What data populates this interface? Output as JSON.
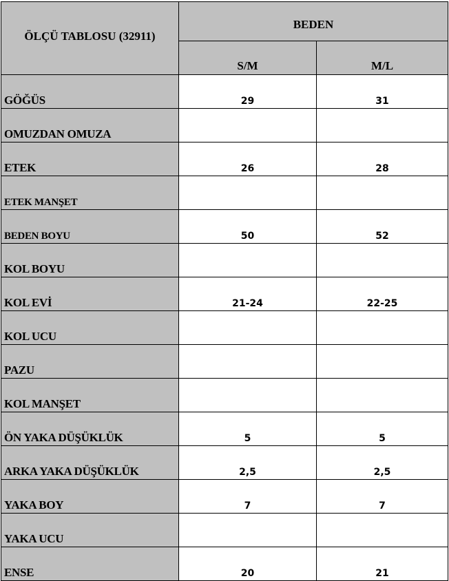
{
  "header": {
    "title": "ÖLÇÜ TABLOSU (32911)",
    "group": "BEDEN",
    "sizes": [
      "S/M",
      "M/L"
    ]
  },
  "rows": [
    {
      "label": "GÖĞÜS",
      "values": [
        "29",
        "31"
      ]
    },
    {
      "label": "OMUZDAN OMUZA",
      "values": [
        "",
        ""
      ]
    },
    {
      "label": "ETEK",
      "values": [
        "26",
        "28"
      ]
    },
    {
      "label": "ETEK MANŞET",
      "values": [
        "",
        ""
      ]
    },
    {
      "label": "BEDEN BOYU",
      "values": [
        "50",
        "52"
      ]
    },
    {
      "label": "KOL BOYU",
      "values": [
        "",
        ""
      ]
    },
    {
      "label": "KOL EVİ",
      "values": [
        "21-24",
        "22-25"
      ]
    },
    {
      "label": "KOL UCU",
      "values": [
        "",
        ""
      ]
    },
    {
      "label": "PAZU",
      "values": [
        "",
        ""
      ]
    },
    {
      "label": "KOL MANŞET",
      "values": [
        "",
        ""
      ]
    },
    {
      "label": "ÖN YAKA DÜŞÜKLÜK",
      "values": [
        "5",
        "5"
      ]
    },
    {
      "label": "ARKA YAKA DÜŞÜKLÜK",
      "values": [
        "2,5",
        "2,5"
      ]
    },
    {
      "label": "YAKA BOY",
      "values": [
        "7",
        "7"
      ]
    },
    {
      "label": "YAKA UCU",
      "values": [
        "",
        ""
      ]
    },
    {
      "label": "ENSE",
      "values": [
        "20",
        "21"
      ]
    }
  ],
  "colors": {
    "header_bg": "#c0c0c0",
    "border": "#000000"
  }
}
